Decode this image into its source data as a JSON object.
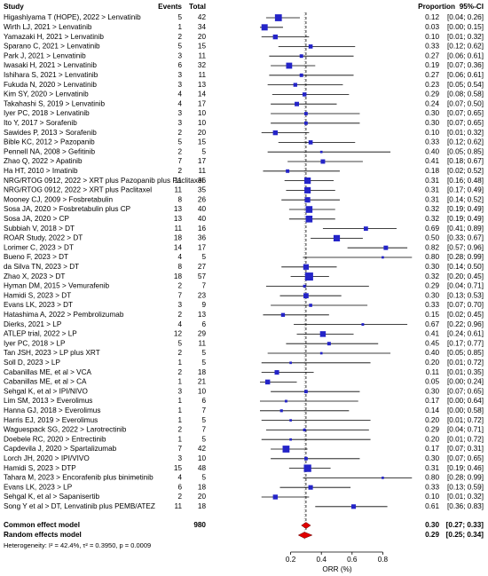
{
  "chart_data": {
    "type": "forest",
    "headers": {
      "study": "Study",
      "events": "Events",
      "total": "Total",
      "proportion": "Proportion",
      "ci": "95%-CI"
    },
    "studies": [
      "Higashiyama T (HOPE), 2022 > Lenvatinib",
      "Wirth LJ, 2021 > Lenvatinib",
      "Yamazaki H, 2021 > Lenvatinib",
      "Sparano C, 2021 > Lenvatinib",
      "Park J, 2021 > Lenvatinib",
      "Iwasaki H, 2021 > Lenvatinib",
      "Ishihara S, 2021 > Lenvatinib",
      "Fukuda N, 2020 > Lenvatinib",
      "Kim SY, 2020 > Lenvatinib",
      "Takahashi S, 2019 > Lenvatinib",
      "Iyer PC, 2018 > Lenvatinib",
      "Ito Y, 2017 > Sorafenib",
      "Sawides P, 2013 > Sorafenib",
      "Bible KC, 2012 > Pazopanib",
      "Pennell NA, 2008 > Gefitinib",
      "Zhao Q, 2022 > Apatinib",
      "Ha HT, 2010 > Imatinib",
      "NRG/RTOG 0912, 2022 > XRT plus Pazopanib plus Paclitaxel",
      "NRG/RTOG 0912, 2022 > XRT plus Paclitaxel",
      "Mooney CJ, 2009 > Fosbretabulin",
      "Sosa JA, 2020 > Fosbretabulin plus CP",
      "Sosa JA, 2020 > CP",
      "Subbiah V, 2018 > DT",
      "ROAR Study, 2022 > DT",
      "Lorimer C, 2023 > DT",
      "Bueno F, 2023 > DT",
      "da Silva TN, 2023 > DT",
      "Zhao X, 2023 > DT",
      "Hyman DM, 2015 > Vemurafenib",
      "Hamidi S, 2023 > DT",
      "Evans LK, 2023 > DT",
      "Hatashima A, 2022 > Pembrolizumab",
      "Dierks, 2021 > LP",
      "ATLEP trial, 2022 > LP",
      "Iyer PC, 2018 > LP",
      "Tan JSH, 2023 > LP plus XRT",
      "Soll D, 2023 > LP",
      "Cabanillas ME, et al > VCA",
      "Cabanillas ME, et al > CA",
      "Sehgal K, et al > IPI/NIVO",
      "Lim SM, 2013 > Everolimus",
      "Hanna GJ, 2018 > Everolimus",
      "Harris EJ, 2019 > Everolimus",
      "Waguespack SG, 2022 > Larotrectinib",
      "Doebele RC, 2020 > Entrectinib",
      "Capdevila J, 2020 > Spartalizumab",
      "Lorch JH, 2020 > IPI/VIVO",
      "Hamidi S, 2023 > DTP",
      "Tahara M, 2023 > Encorafenib plus binimetinib",
      "Evans LK, 2023 > LP",
      "Sehgal K, et al > Sapanisertib",
      "Song Y et al > DT, Lenvatinib plus PEMB/ATEZ"
    ],
    "events": [
      5,
      1,
      2,
      5,
      3,
      6,
      3,
      3,
      4,
      4,
      3,
      3,
      2,
      5,
      2,
      7,
      2,
      11,
      11,
      8,
      13,
      13,
      11,
      18,
      14,
      4,
      8,
      18,
      2,
      7,
      3,
      2,
      4,
      12,
      5,
      2,
      1,
      2,
      1,
      3,
      1,
      1,
      1,
      2,
      1,
      7,
      3,
      15,
      4,
      6,
      2,
      11
    ],
    "totals": [
      42,
      34,
      20,
      15,
      11,
      32,
      11,
      13,
      14,
      17,
      10,
      10,
      20,
      15,
      5,
      17,
      11,
      36,
      35,
      26,
      40,
      40,
      16,
      36,
      17,
      5,
      27,
      57,
      7,
      23,
      9,
      13,
      6,
      29,
      11,
      5,
      5,
      18,
      21,
      10,
      6,
      7,
      5,
      7,
      5,
      42,
      10,
      48,
      5,
      18,
      20,
      18
    ],
    "values": [
      0.12,
      0.03,
      0.1,
      0.33,
      0.27,
      0.19,
      0.27,
      0.23,
      0.29,
      0.24,
      0.3,
      0.3,
      0.1,
      0.33,
      0.4,
      0.41,
      0.18,
      0.31,
      0.31,
      0.31,
      0.32,
      0.32,
      0.69,
      0.5,
      0.82,
      0.8,
      0.3,
      0.32,
      0.29,
      0.3,
      0.33,
      0.15,
      0.67,
      0.41,
      0.45,
      0.4,
      0.2,
      0.11,
      0.05,
      0.3,
      0.17,
      0.14,
      0.2,
      0.29,
      0.2,
      0.17,
      0.3,
      0.31,
      0.8,
      0.33,
      0.1,
      0.61
    ],
    "value_labels": [
      "0.12",
      "0.03",
      "0.10",
      "0.33",
      "0.27",
      "0.19",
      "0.27",
      "0.23",
      "0.29",
      "0.24",
      "0.30",
      "0.30",
      "0.10",
      "0.33",
      "0.40",
      "0.41",
      "0.18",
      "0.31",
      "0.31",
      "0.31",
      "0.32",
      "0.32",
      "0.69",
      "0.50",
      "0.82",
      "0.80",
      "0.30",
      "0.32",
      "0.29",
      "0.30",
      "0.33",
      "0.15",
      "0.67",
      "0.41",
      "0.45",
      "0.40",
      "0.20",
      "0.11",
      "0.05",
      "0.30",
      "0.17",
      "0.14",
      "0.20",
      "0.29",
      "0.20",
      "0.17",
      "0.30",
      "0.31",
      "0.80",
      "0.33",
      "0.10",
      "0.61"
    ],
    "ci_lower": [
      0.04,
      0.0,
      0.01,
      0.12,
      0.06,
      0.07,
      0.06,
      0.05,
      0.08,
      0.07,
      0.07,
      0.07,
      0.01,
      0.12,
      0.05,
      0.18,
      0.02,
      0.16,
      0.17,
      0.14,
      0.19,
      0.19,
      0.41,
      0.33,
      0.57,
      0.28,
      0.14,
      0.2,
      0.04,
      0.13,
      0.07,
      0.02,
      0.22,
      0.24,
      0.17,
      0.05,
      0.01,
      0.01,
      0.0,
      0.07,
      0.0,
      0.0,
      0.01,
      0.04,
      0.01,
      0.07,
      0.07,
      0.19,
      0.28,
      0.13,
      0.01,
      0.36
    ],
    "ci_upper": [
      0.26,
      0.15,
      0.32,
      0.62,
      0.61,
      0.36,
      0.61,
      0.54,
      0.58,
      0.5,
      0.65,
      0.65,
      0.32,
      0.62,
      0.85,
      0.67,
      0.52,
      0.48,
      0.49,
      0.52,
      0.49,
      0.49,
      0.89,
      0.67,
      0.96,
      0.99,
      0.5,
      0.45,
      0.71,
      0.53,
      0.7,
      0.45,
      0.96,
      0.61,
      0.77,
      0.85,
      0.72,
      0.35,
      0.24,
      0.65,
      0.64,
      0.58,
      0.72,
      0.71,
      0.72,
      0.31,
      0.65,
      0.46,
      0.99,
      0.59,
      0.32,
      0.83
    ],
    "ci_labels": [
      "[0.04; 0.26]",
      "[0.00; 0.15]",
      "[0.01; 0.32]",
      "[0.12; 0.62]",
      "[0.06; 0.61]",
      "[0.07; 0.36]",
      "[0.06; 0.61]",
      "[0.05; 0.54]",
      "[0.08; 0.58]",
      "[0.07; 0.50]",
      "[0.07; 0.65]",
      "[0.07; 0.65]",
      "[0.01; 0.32]",
      "[0.12; 0.62]",
      "[0.05; 0.85]",
      "[0.18; 0.67]",
      "[0.02; 0.52]",
      "[0.16; 0.48]",
      "[0.17; 0.49]",
      "[0.14; 0.52]",
      "[0.19; 0.49]",
      "[0.19; 0.49]",
      "[0.41; 0.89]",
      "[0.33; 0.67]",
      "[0.57; 0.96]",
      "[0.28; 0.99]",
      "[0.14; 0.50]",
      "[0.20; 0.45]",
      "[0.04; 0.71]",
      "[0.13; 0.53]",
      "[0.07; 0.70]",
      "[0.02; 0.45]",
      "[0.22; 0.96]",
      "[0.24; 0.61]",
      "[0.17; 0.77]",
      "[0.05; 0.85]",
      "[0.01; 0.72]",
      "[0.01; 0.35]",
      "[0.00; 0.24]",
      "[0.07; 0.65]",
      "[0.00; 0.64]",
      "[0.00; 0.58]",
      "[0.01; 0.72]",
      "[0.04; 0.71]",
      "[0.01; 0.72]",
      "[0.07; 0.31]",
      "[0.07; 0.65]",
      "[0.19; 0.46]",
      "[0.28; 0.99]",
      "[0.13; 0.59]",
      "[0.01; 0.32]",
      "[0.36; 0.83]"
    ],
    "common": {
      "name": "Common effect model",
      "total": 980,
      "value": 0.3,
      "value_label": "0.30",
      "ci_lower": 0.27,
      "ci_upper": 0.33,
      "ci_label": "[0.27; 0.33]"
    },
    "random": {
      "name": "Random effects model",
      "value": 0.29,
      "value_label": "0.29",
      "ci_lower": 0.25,
      "ci_upper": 0.34,
      "ci_label": "[0.25; 0.34]"
    },
    "heterogeneity": "Heterogeneity: I² = 42.4%, τ² = 0.3950, p = 0.0009",
    "xlabel": "ORR (%)",
    "xlim": [
      0,
      1
    ],
    "xticks": [
      0.2,
      0.4,
      0.6,
      0.8
    ],
    "marker_color": "#2424c8",
    "summary_color": "#e00000"
  }
}
